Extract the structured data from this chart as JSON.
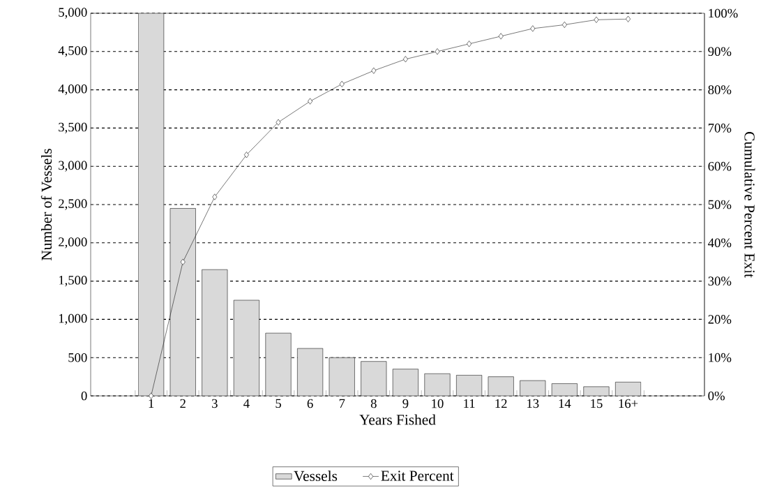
{
  "chart_data": {
    "type": "bar",
    "xlabel": "Years Fished",
    "ylabel": "Number of Vessels",
    "y2label": "Cumulative Percent Exit",
    "categories": [
      "1",
      "2",
      "3",
      "4",
      "5",
      "6",
      "7",
      "8",
      "9",
      "10",
      "11",
      "12",
      "13",
      "14",
      "15",
      "16+"
    ],
    "series": [
      {
        "name": "Vessels",
        "color": "#d9d9d9",
        "values": [
          5000,
          2450,
          1650,
          1250,
          820,
          620,
          500,
          450,
          350,
          290,
          270,
          250,
          200,
          160,
          120,
          180
        ]
      },
      {
        "name": "Exit Percent",
        "type": "line",
        "axis": "y2",
        "color": "#000000",
        "marker": "diamond",
        "values": [
          0,
          35,
          52,
          63,
          71.5,
          77,
          81.5,
          85,
          88,
          90,
          92,
          94,
          96,
          97,
          98.3,
          98.5
        ]
      }
    ],
    "ylim": [
      0,
      5000
    ],
    "yticks": [
      0,
      500,
      {
        "value": 1000,
        "label": "1,000"
      },
      {
        "value": 1500,
        "label": "1,500"
      },
      {
        "value": 2000,
        "label": "2,000"
      },
      {
        "value": 2500,
        "label": "2,500"
      },
      {
        "value": 3000,
        "label": "3,000"
      },
      {
        "value": 3500,
        "label": "3,500"
      },
      {
        "value": 4000,
        "label": "4,000"
      },
      {
        "value": 4500,
        "label": "4,500"
      },
      {
        "value": 5000,
        "label": "5,000"
      }
    ],
    "y2lim": [
      0,
      100
    ],
    "y2ticks": [
      {
        "value": 0,
        "label": "0%"
      },
      {
        "value": 10,
        "label": "10%"
      },
      {
        "value": 20,
        "label": "20%"
      },
      {
        "value": 30,
        "label": "30%"
      },
      {
        "value": 40,
        "label": "40%"
      },
      {
        "value": 50,
        "label": "50%"
      },
      {
        "value": 60,
        "label": "60%"
      },
      {
        "value": 70,
        "label": "70%"
      },
      {
        "value": 80,
        "label": "80%"
      },
      {
        "value": 90,
        "label": "90%"
      },
      {
        "value": 100,
        "label": "100%"
      }
    ],
    "grid": "y",
    "legend": "bottom"
  }
}
